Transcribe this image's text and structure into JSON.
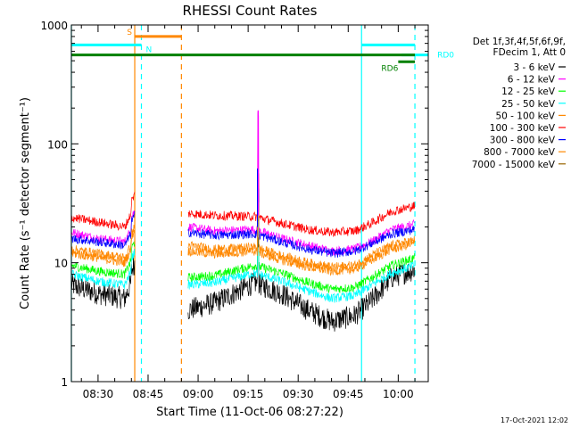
{
  "chart_data": {
    "type": "line",
    "title": "RHESSI Count Rates",
    "xlabel": "Start Time (11-Oct-06 08:27:22)",
    "ylabel": "Count Rate (s⁻¹ detector segment⁻¹)",
    "yscale": "log",
    "ylim": [
      1,
      1000
    ],
    "xlim": [
      "08:22",
      "10:09"
    ],
    "x_ticks": [
      "08:30",
      "08:45",
      "09:00",
      "09:15",
      "09:30",
      "09:45",
      "10:00"
    ],
    "y_ticks": [
      "1",
      "10",
      "100",
      "1000"
    ],
    "timestamp": "17-Oct-2021 12:02",
    "legend": {
      "placement": "right",
      "header": [
        "Det 1f,3f,4f,5f,6f,9f,",
        "FDecim 1, Att 0"
      ]
    },
    "series": [
      {
        "name": "3 - 6 keV",
        "color": "#000000",
        "points": [
          [
            "08:22",
            6.5
          ],
          [
            "08:30",
            5.5
          ],
          [
            "08:38",
            5.0
          ],
          [
            "08:41",
            8.0
          ],
          [
            "08:57",
            4.0
          ],
          [
            "09:05",
            4.6
          ],
          [
            "09:17",
            6.8
          ],
          [
            "09:25",
            5.5
          ],
          [
            "09:33",
            4.0
          ],
          [
            "09:40",
            3.2
          ],
          [
            "09:47",
            3.6
          ],
          [
            "09:52",
            4.8
          ],
          [
            "09:58",
            7.5
          ],
          [
            "10:05",
            8.8
          ]
        ]
      },
      {
        "name": "6 - 12 keV",
        "color": "#ff00ff",
        "points": [
          [
            "08:22",
            18
          ],
          [
            "08:30",
            16
          ],
          [
            "08:38",
            15
          ],
          [
            "08:41",
            22
          ],
          [
            "08:57",
            20
          ],
          [
            "09:05",
            18.5
          ],
          [
            "09:17",
            19
          ],
          [
            "09:25",
            16
          ],
          [
            "09:33",
            14
          ],
          [
            "09:40",
            12.5
          ],
          [
            "09:47",
            13
          ],
          [
            "09:52",
            15
          ],
          [
            "09:58",
            19
          ],
          [
            "10:05",
            21
          ]
        ]
      },
      {
        "name": "12 - 25 keV",
        "color": "#00ff00",
        "points": [
          [
            "08:22",
            9.5
          ],
          [
            "08:30",
            8.5
          ],
          [
            "08:38",
            8.0
          ],
          [
            "08:41",
            12
          ],
          [
            "08:57",
            7.5
          ],
          [
            "09:05",
            7.8
          ],
          [
            "09:17",
            9.5
          ],
          [
            "09:25",
            8.2
          ],
          [
            "09:33",
            6.8
          ],
          [
            "09:40",
            6.0
          ],
          [
            "09:47",
            6.2
          ],
          [
            "09:52",
            7.5
          ],
          [
            "09:58",
            9.5
          ],
          [
            "10:05",
            11
          ]
        ]
      },
      {
        "name": "25 - 50 keV",
        "color": "#00ffff",
        "points": [
          [
            "08:22",
            8.0
          ],
          [
            "08:30",
            7.0
          ],
          [
            "08:38",
            6.5
          ],
          [
            "08:41",
            10
          ],
          [
            "08:57",
            6.5
          ],
          [
            "09:05",
            6.8
          ],
          [
            "09:17",
            8.2
          ],
          [
            "09:25",
            7.0
          ],
          [
            "09:33",
            5.8
          ],
          [
            "09:40",
            5.0
          ],
          [
            "09:47",
            5.3
          ],
          [
            "09:52",
            6.5
          ],
          [
            "09:58",
            8.2
          ],
          [
            "10:05",
            9.5
          ]
        ]
      },
      {
        "name": "50 - 100 keV",
        "color": "#ff8800",
        "points": [
          [
            "08:22",
            12
          ],
          [
            "08:30",
            11
          ],
          [
            "08:38",
            10
          ],
          [
            "08:41",
            15
          ],
          [
            "08:57",
            12.5
          ],
          [
            "09:05",
            11.8
          ],
          [
            "09:17",
            12.5
          ],
          [
            "09:25",
            10.5
          ],
          [
            "09:33",
            9.2
          ],
          [
            "09:40",
            8.5
          ],
          [
            "09:47",
            8.8
          ],
          [
            "09:52",
            10.5
          ],
          [
            "09:58",
            13
          ],
          [
            "10:05",
            14.5
          ]
        ]
      },
      {
        "name": "100 - 300 keV",
        "color": "#ff0000",
        "points": [
          [
            "08:22",
            24
          ],
          [
            "08:30",
            22
          ],
          [
            "08:38",
            20
          ],
          [
            "08:41",
            30
          ],
          [
            "08:57",
            26
          ],
          [
            "09:05",
            25
          ],
          [
            "09:17",
            24.5
          ],
          [
            "09:25",
            21.5
          ],
          [
            "09:33",
            19
          ],
          [
            "09:40",
            18
          ],
          [
            "09:47",
            18.5
          ],
          [
            "09:52",
            21.5
          ],
          [
            "09:58",
            27
          ],
          [
            "10:05",
            30
          ]
        ]
      },
      {
        "name": "300 - 800 keV",
        "color": "#0000ff",
        "points": [
          [
            "08:22",
            16
          ],
          [
            "08:30",
            15
          ],
          [
            "08:38",
            14
          ],
          [
            "08:41",
            20
          ],
          [
            "08:57",
            18
          ],
          [
            "09:05",
            17
          ],
          [
            "09:17",
            17.5
          ],
          [
            "09:25",
            15
          ],
          [
            "09:33",
            13
          ],
          [
            "09:40",
            12
          ],
          [
            "09:47",
            12.5
          ],
          [
            "09:52",
            14.5
          ],
          [
            "09:58",
            17.5
          ],
          [
            "10:05",
            19
          ]
        ]
      },
      {
        "name": "800 - 7000 keV",
        "color": "#ff8800",
        "points": [
          [
            "08:22",
            13
          ],
          [
            "08:30",
            12
          ],
          [
            "08:38",
            11
          ],
          [
            "08:41",
            16
          ],
          [
            "08:57",
            14
          ],
          [
            "09:05",
            13
          ],
          [
            "09:17",
            13.5
          ],
          [
            "09:25",
            11.5
          ],
          [
            "09:33",
            10
          ],
          [
            "09:40",
            9.2
          ],
          [
            "09:47",
            9.5
          ],
          [
            "09:52",
            11.5
          ],
          [
            "09:58",
            14
          ],
          [
            "10:05",
            15.5
          ]
        ]
      },
      {
        "name": "7000 - 15000 keV",
        "color": "#996600",
        "points": []
      }
    ],
    "spike": {
      "time": "09:18",
      "peak": 190
    },
    "attenuator_bars": [
      {
        "label": "S",
        "color": "#ff8800",
        "level": 800,
        "start": "08:41",
        "end": "08:55"
      },
      {
        "label": "N",
        "color": "#00ffff",
        "level": 680,
        "start": "08:22",
        "end": "08:43"
      },
      {
        "label": "",
        "color": "#00ffff",
        "level": 680,
        "start": "09:49",
        "end": "10:05"
      },
      {
        "label": "RD0",
        "color": "#00ffff",
        "level": 560,
        "start": "10:01",
        "end": "10:09"
      },
      {
        "label": "",
        "color": "#008000",
        "level": 560,
        "start": "08:22",
        "end": "10:05"
      },
      {
        "label": "RD6",
        "color": "#008000",
        "level": 490,
        "start": "10:00",
        "end": "10:05"
      }
    ],
    "vertical_markers": [
      {
        "time": "08:22",
        "color": "#00ffff",
        "style": "solid"
      },
      {
        "time": "08:41",
        "color": "#ff8800",
        "style": "solid"
      },
      {
        "time": "08:43",
        "color": "#00ffff",
        "style": "dashed"
      },
      {
        "time": "08:55",
        "color": "#ff8800",
        "style": "dashed"
      },
      {
        "time": "09:49",
        "color": "#00ffff",
        "style": "solid"
      },
      {
        "time": "10:05",
        "color": "#00ffff",
        "style": "dashed"
      }
    ],
    "gap": {
      "start": "08:41",
      "end": "08:57"
    }
  }
}
